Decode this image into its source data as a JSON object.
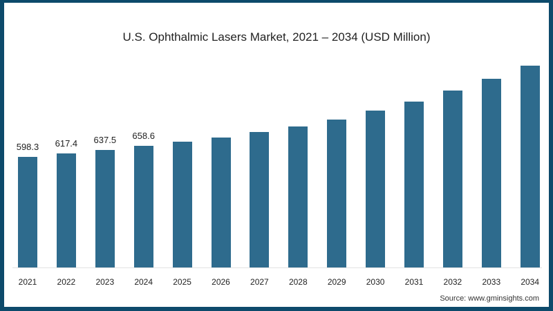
{
  "chart_data": {
    "type": "bar",
    "title": "U.S. Ophthalmic Lasers Market, 2021 – 2034 (USD Million)",
    "xlabel": "",
    "ylabel": "USD Million",
    "categories": [
      "2021",
      "2022",
      "2023",
      "2024",
      "2025",
      "2026",
      "2027",
      "2028",
      "2029",
      "2030",
      "2031",
      "2032",
      "2033",
      "2034"
    ],
    "values": [
      598.3,
      617.4,
      637.5,
      658.6,
      681,
      703,
      733,
      763,
      800,
      849,
      898,
      957,
      1021,
      1092
    ],
    "data_labels": [
      "598.3",
      "617.4",
      "637.5",
      "658.6",
      "",
      "",
      "",
      "",
      "",
      "",
      "",
      "",
      "",
      ""
    ],
    "ylim": [
      0,
      1120
    ],
    "grid": false,
    "legend": null,
    "bar_color": "#2e6b8d",
    "source": "Source: www.gminsights.com"
  }
}
